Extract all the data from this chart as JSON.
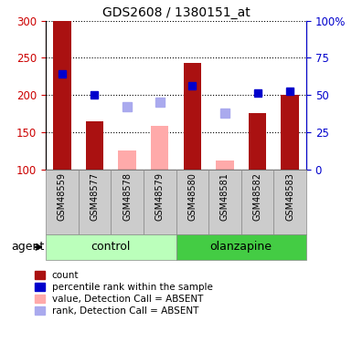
{
  "title": "GDS2608 / 1380151_at",
  "samples": [
    "GSM48559",
    "GSM48577",
    "GSM48578",
    "GSM48579",
    "GSM48580",
    "GSM48581",
    "GSM48582",
    "GSM48583"
  ],
  "groups": {
    "control": [
      0,
      1,
      2,
      3
    ],
    "olanzapine": [
      4,
      5,
      6,
      7
    ]
  },
  "bar_color_present": "#aa1111",
  "bar_color_absent": "#ffaaaa",
  "dot_color_present": "#0000cc",
  "dot_color_absent": "#aaaaee",
  "ylim_left": [
    100,
    300
  ],
  "ylim_right": [
    0,
    100
  ],
  "yticks_left": [
    100,
    150,
    200,
    250,
    300
  ],
  "yticks_right": [
    0,
    25,
    50,
    75,
    100
  ],
  "left_tick_color": "#cc0000",
  "right_tick_color": "#0000cc",
  "bar_values": [
    299,
    165,
    null,
    null,
    243,
    null,
    175,
    200
  ],
  "bar_absent_values": [
    null,
    null,
    125,
    158,
    null,
    112,
    null,
    null
  ],
  "dot_values": [
    228,
    200,
    null,
    null,
    212,
    null,
    202,
    205
  ],
  "dot_absent_values": [
    null,
    null,
    184,
    190,
    null,
    176,
    null,
    null
  ],
  "detection_present": [
    true,
    true,
    false,
    false,
    true,
    false,
    true,
    true
  ],
  "group_label_control": "control",
  "group_label_olanzapine": "olanzapine",
  "agent_label": "agent",
  "ctrl_color": "#bbffbb",
  "olz_color": "#44cc44",
  "sample_bg_color": "#cccccc",
  "legend_items": [
    {
      "color": "#aa1111",
      "label": "count"
    },
    {
      "color": "#0000cc",
      "label": "percentile rank within the sample"
    },
    {
      "color": "#ffaaaa",
      "label": "value, Detection Call = ABSENT"
    },
    {
      "color": "#aaaaee",
      "label": "rank, Detection Call = ABSENT"
    }
  ]
}
